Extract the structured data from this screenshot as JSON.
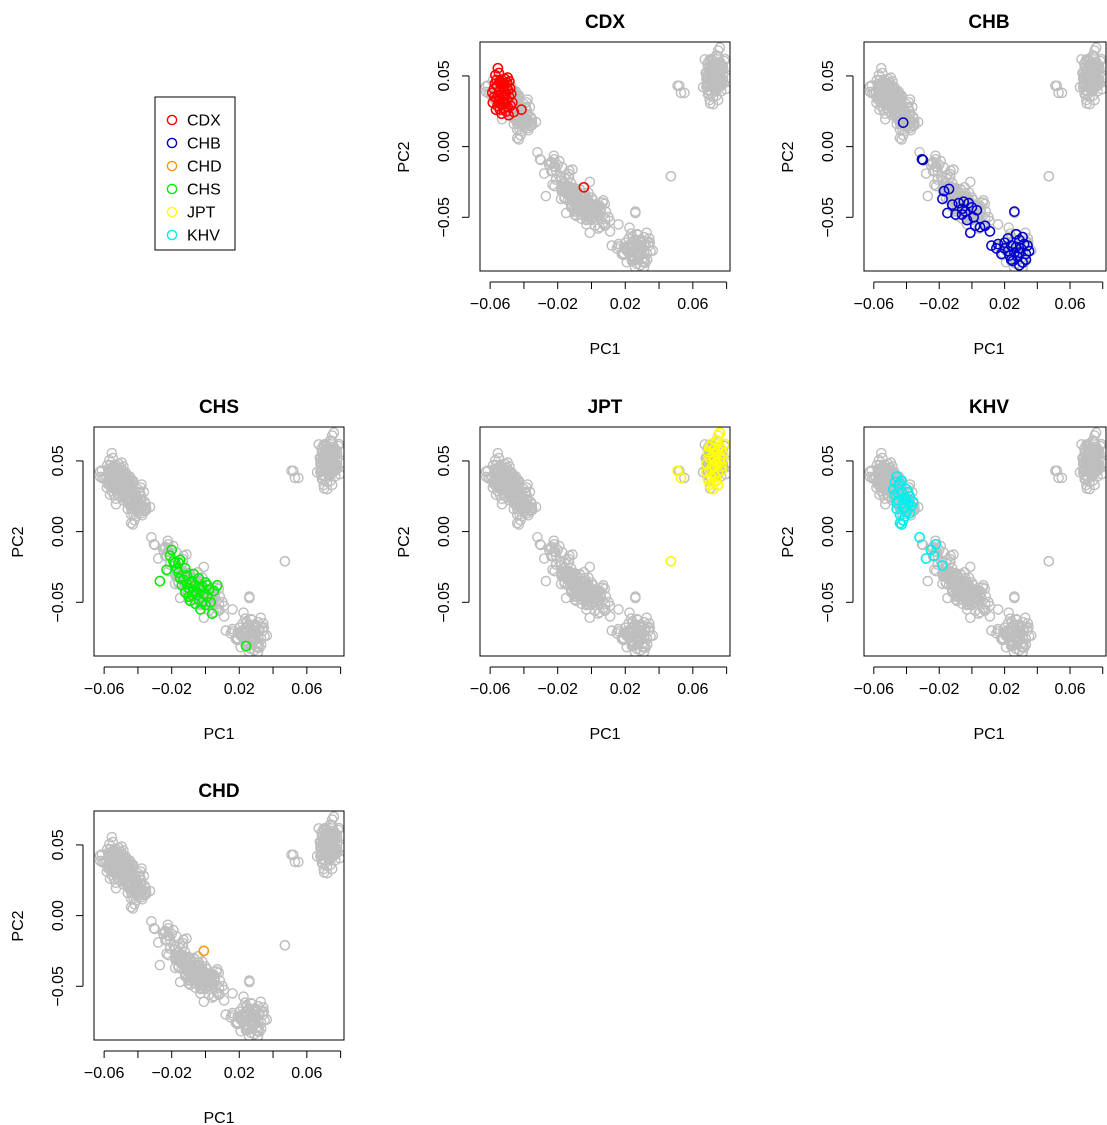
{
  "figure": {
    "x_axis_label": "PC1",
    "y_axis_label": "PC2",
    "x_ticks": [
      -0.06,
      -0.02,
      0.02,
      0.06
    ],
    "x_tick_labels": [
      "−0.06",
      "−0.02",
      "0.02",
      "0.06"
    ],
    "y_ticks": [
      -0.05,
      0.0,
      0.05
    ],
    "y_tick_labels": [
      "−0.05",
      "0.00",
      "0.05"
    ],
    "xlim": [
      -0.066,
      0.082
    ],
    "ylim": [
      -0.088,
      0.074
    ],
    "background_color": "#bebebe"
  },
  "legend": {
    "items": [
      {
        "label": "CDX",
        "color": "#ff0000"
      },
      {
        "label": "CHB",
        "color": "#0000cd"
      },
      {
        "label": "CHD",
        "color": "#ff9900"
      },
      {
        "label": "CHS",
        "color": "#00ee00"
      },
      {
        "label": "JPT",
        "color": "#ffff00"
      },
      {
        "label": "KHV",
        "color": "#00eeee"
      }
    ]
  },
  "chart_data": [
    {
      "type": "scatter",
      "title": "CDX",
      "xlabel": "PC1",
      "ylabel": "PC2",
      "highlight": "CDX",
      "highlight_color": "#ff0000",
      "xlim": [
        -0.066,
        0.082
      ],
      "ylim": [
        -0.088,
        0.074
      ]
    },
    {
      "type": "scatter",
      "title": "CHB",
      "xlabel": "PC1",
      "ylabel": "PC2",
      "highlight": "CHB",
      "highlight_color": "#0000cd",
      "xlim": [
        -0.066,
        0.082
      ],
      "ylim": [
        -0.088,
        0.074
      ]
    },
    {
      "type": "scatter",
      "title": "CHS",
      "xlabel": "PC1",
      "ylabel": "PC2",
      "highlight": "CHS",
      "highlight_color": "#00ee00",
      "xlim": [
        -0.066,
        0.082
      ],
      "ylim": [
        -0.088,
        0.074
      ]
    },
    {
      "type": "scatter",
      "title": "JPT",
      "xlabel": "PC1",
      "ylabel": "PC2",
      "highlight": "JPT",
      "highlight_color": "#ffff00",
      "xlim": [
        -0.066,
        0.082
      ],
      "ylim": [
        -0.088,
        0.074
      ]
    },
    {
      "type": "scatter",
      "title": "KHV",
      "xlabel": "PC1",
      "ylabel": "PC2",
      "highlight": "KHV",
      "highlight_color": "#00eeee",
      "xlim": [
        -0.066,
        0.082
      ],
      "ylim": [
        -0.088,
        0.074
      ]
    },
    {
      "type": "scatter",
      "title": "CHD",
      "xlabel": "PC1",
      "ylabel": "PC2",
      "highlight": "CHD",
      "highlight_color": "#ff9900",
      "xlim": [
        -0.066,
        0.082
      ],
      "ylim": [
        -0.088,
        0.074
      ]
    }
  ],
  "populations": {
    "CDX": [
      [
        -0.0578,
        0.0408
      ],
      [
        -0.0562,
        0.0471
      ],
      [
        -0.0551,
        0.0362
      ],
      [
        -0.0584,
        0.0311
      ],
      [
        -0.0538,
        0.0439
      ],
      [
        -0.0525,
        0.0318
      ],
      [
        -0.0569,
        0.0505
      ],
      [
        -0.0546,
        0.0389
      ],
      [
        -0.0533,
        0.0474
      ],
      [
        -0.0515,
        0.0361
      ],
      [
        -0.0557,
        0.0288
      ],
      [
        -0.0518,
        0.0419
      ],
      [
        -0.0541,
        0.0338
      ],
      [
        -0.0507,
        0.0302
      ],
      [
        -0.0499,
        0.0451
      ],
      [
        -0.0563,
        0.0341
      ],
      [
        -0.053,
        0.0382
      ],
      [
        -0.0493,
        0.0398
      ],
      [
        -0.0512,
        0.0478
      ],
      [
        -0.0548,
        0.0521
      ],
      [
        -0.0575,
        0.0353
      ],
      [
        -0.0522,
        0.0272
      ],
      [
        -0.0488,
        0.0352
      ],
      [
        -0.0505,
        0.0248
      ],
      [
        -0.0481,
        0.0412
      ],
      [
        -0.0536,
        0.0298
      ],
      [
        -0.0544,
        0.0462
      ],
      [
        -0.0519,
        0.0393
      ],
      [
        -0.0501,
        0.0331
      ],
      [
        -0.0559,
        0.0428
      ],
      [
        -0.0527,
        0.0449
      ],
      [
        -0.0479,
        0.0288
      ],
      [
        -0.049,
        0.0222
      ],
      [
        -0.0565,
        0.0261
      ],
      [
        -0.0486,
        0.0461
      ],
      [
        -0.051,
        0.0372
      ],
      [
        -0.054,
        0.04
      ],
      [
        -0.055,
        0.032
      ],
      [
        -0.0496,
        0.0281
      ],
      [
        -0.0528,
        0.035
      ],
      [
        -0.0587,
        0.0381
      ],
      [
        -0.0571,
        0.0445
      ],
      [
        -0.0517,
        0.0448
      ],
      [
        -0.0502,
        0.0411
      ],
      [
        -0.0542,
        0.0262
      ],
      [
        -0.0469,
        0.0312
      ],
      [
        -0.0475,
        0.0372
      ],
      [
        -0.0554,
        0.0555
      ],
      [
        -0.0532,
        0.0233
      ],
      [
        -0.0496,
        0.0488
      ],
      [
        -0.0415,
        0.0262
      ],
      [
        -0.046,
        0.0245
      ],
      [
        -0.0045,
        -0.0288
      ]
    ],
    "CHB": [
      [
        -0.042,
        0.017
      ],
      [
        -0.0305,
        -0.009
      ],
      [
        -0.03,
        -0.0095
      ],
      [
        -0.017,
        -0.0315
      ],
      [
        -0.014,
        -0.03
      ],
      [
        -0.018,
        -0.037
      ],
      [
        -0.012,
        -0.041
      ],
      [
        -0.008,
        -0.04
      ],
      [
        -0.01,
        -0.048
      ],
      [
        -0.006,
        -0.044
      ],
      [
        -0.004,
        -0.046
      ],
      [
        -0.002,
        -0.04
      ],
      [
        0.0,
        -0.043
      ],
      [
        0.001,
        -0.05
      ],
      [
        -0.003,
        -0.052
      ],
      [
        0.002,
        -0.056
      ],
      [
        0.005,
        -0.057
      ],
      [
        -0.006,
        -0.048
      ],
      [
        -0.015,
        -0.047
      ],
      [
        -0.001,
        -0.061
      ],
      [
        0.003,
        -0.045
      ],
      [
        -0.005,
        -0.039
      ],
      [
        0.008,
        -0.056
      ],
      [
        0.011,
        -0.06
      ],
      [
        0.016,
        -0.069
      ],
      [
        0.02,
        -0.072
      ],
      [
        0.022,
        -0.065
      ],
      [
        0.024,
        -0.07
      ],
      [
        0.026,
        -0.075
      ],
      [
        0.028,
        -0.078
      ],
      [
        0.03,
        -0.072
      ],
      [
        0.031,
        -0.082
      ],
      [
        0.029,
        -0.066
      ],
      [
        0.027,
        -0.062
      ],
      [
        0.032,
        -0.069
      ],
      [
        0.033,
        -0.076
      ],
      [
        0.025,
        -0.081
      ],
      [
        0.023,
        -0.077
      ],
      [
        0.029,
        -0.084
      ],
      [
        0.034,
        -0.07
      ],
      [
        0.026,
        -0.046
      ],
      [
        0.02,
        -0.068
      ],
      [
        0.018,
        -0.076
      ],
      [
        0.031,
        -0.064
      ],
      [
        0.033,
        -0.08
      ],
      [
        0.027,
        -0.071
      ],
      [
        0.024,
        -0.08
      ],
      [
        0.022,
        -0.074
      ],
      [
        0.035,
        -0.074
      ],
      [
        0.012,
        -0.07
      ],
      [
        0.015,
        -0.072
      ],
      [
        0.029,
        -0.075
      ]
    ],
    "CHD": [
      [
        -0.001,
        -0.025
      ]
    ],
    "CHS": [
      [
        -0.023,
        -0.027
      ],
      [
        -0.02,
        -0.013
      ],
      [
        -0.018,
        -0.022
      ],
      [
        -0.016,
        -0.029
      ],
      [
        -0.021,
        -0.017
      ],
      [
        -0.015,
        -0.02
      ],
      [
        -0.013,
        -0.034
      ],
      [
        -0.011,
        -0.031
      ],
      [
        -0.01,
        -0.04
      ],
      [
        -0.009,
        -0.036
      ],
      [
        -0.008,
        -0.045
      ],
      [
        -0.006,
        -0.038
      ],
      [
        -0.005,
        -0.043
      ],
      [
        -0.004,
        -0.048
      ],
      [
        -0.003,
        -0.04
      ],
      [
        -0.002,
        -0.05
      ],
      [
        -0.001,
        -0.044
      ],
      [
        0.0,
        -0.052
      ],
      [
        0.001,
        -0.046
      ],
      [
        0.002,
        -0.041
      ],
      [
        -0.012,
        -0.026
      ],
      [
        -0.014,
        -0.038
      ],
      [
        -0.007,
        -0.03
      ],
      [
        -0.017,
        -0.026
      ],
      [
        -0.019,
        -0.021
      ],
      [
        0.003,
        -0.05
      ],
      [
        0.004,
        -0.058
      ],
      [
        -0.008,
        -0.035
      ],
      [
        -0.006,
        -0.051
      ],
      [
        -0.002,
        -0.039
      ],
      [
        -0.01,
        -0.046
      ],
      [
        -0.012,
        -0.043
      ],
      [
        0.005,
        -0.042
      ],
      [
        0.007,
        -0.038
      ],
      [
        -0.027,
        -0.035
      ],
      [
        -0.003,
        -0.055
      ],
      [
        0.001,
        -0.038
      ],
      [
        -0.015,
        -0.033
      ],
      [
        -0.011,
        -0.037
      ],
      [
        -0.004,
        -0.033
      ],
      [
        0.024,
        -0.081
      ],
      [
        -0.016,
        -0.022
      ],
      [
        0.0,
        -0.036
      ],
      [
        -0.009,
        -0.049
      ],
      [
        -0.007,
        -0.042
      ]
    ],
    "JPT": [
      [
        0.07,
        0.052
      ],
      [
        0.072,
        0.058
      ],
      [
        0.074,
        0.049
      ],
      [
        0.076,
        0.06
      ],
      [
        0.078,
        0.055
      ],
      [
        0.071,
        0.045
      ],
      [
        0.073,
        0.04
      ],
      [
        0.075,
        0.068
      ],
      [
        0.069,
        0.037
      ],
      [
        0.077,
        0.046
      ],
      [
        0.068,
        0.048
      ],
      [
        0.07,
        0.033
      ],
      [
        0.072,
        0.03
      ],
      [
        0.074,
        0.036
      ],
      [
        0.076,
        0.052
      ],
      [
        0.079,
        0.062
      ],
      [
        0.071,
        0.062
      ],
      [
        0.073,
        0.051
      ],
      [
        0.075,
        0.057
      ],
      [
        0.077,
        0.043
      ],
      [
        0.069,
        0.056
      ],
      [
        0.071,
        0.039
      ],
      [
        0.073,
        0.046
      ],
      [
        0.075,
        0.042
      ],
      [
        0.074,
        0.064
      ],
      [
        0.072,
        0.053
      ],
      [
        0.07,
        0.043
      ],
      [
        0.068,
        0.042
      ],
      [
        0.078,
        0.051
      ],
      [
        0.076,
        0.049
      ],
      [
        0.077,
        0.058
      ],
      [
        0.072,
        0.035
      ],
      [
        0.074,
        0.055
      ],
      [
        0.076,
        0.07
      ],
      [
        0.07,
        0.06
      ],
      [
        0.053,
        0.038
      ],
      [
        0.051,
        0.043
      ],
      [
        0.047,
        -0.021
      ],
      [
        0.075,
        0.033
      ],
      [
        0.073,
        0.059
      ]
    ],
    "KHV": [
      [
        -0.046,
        0.039
      ],
      [
        -0.044,
        0.034
      ],
      [
        -0.043,
        0.028
      ],
      [
        -0.045,
        0.022
      ],
      [
        -0.042,
        0.017
      ],
      [
        -0.041,
        0.024
      ],
      [
        -0.04,
        0.03
      ],
      [
        -0.039,
        0.02
      ],
      [
        -0.047,
        0.026
      ],
      [
        -0.048,
        0.03
      ],
      [
        -0.046,
        0.016
      ],
      [
        -0.044,
        0.012
      ],
      [
        -0.042,
        0.008
      ],
      [
        -0.04,
        0.014
      ],
      [
        -0.038,
        0.025
      ],
      [
        -0.037,
        0.018
      ],
      [
        -0.045,
        0.033
      ],
      [
        -0.043,
        0.005
      ],
      [
        -0.041,
        0.011
      ],
      [
        -0.039,
        0.028
      ],
      [
        -0.047,
        0.035
      ],
      [
        -0.045,
        0.027
      ],
      [
        -0.042,
        0.02
      ],
      [
        -0.04,
        0.022
      ],
      [
        -0.036,
        0.021
      ],
      [
        -0.044,
        0.006
      ],
      [
        -0.043,
        0.036
      ],
      [
        -0.041,
        0.017
      ],
      [
        -0.046,
        0.02
      ],
      [
        -0.038,
        0.013
      ],
      [
        -0.032,
        -0.004
      ],
      [
        -0.022,
        -0.009
      ],
      [
        -0.025,
        -0.013
      ],
      [
        -0.028,
        -0.019
      ],
      [
        -0.018,
        -0.024
      ],
      [
        -0.023,
        -0.017
      ]
    ]
  }
}
